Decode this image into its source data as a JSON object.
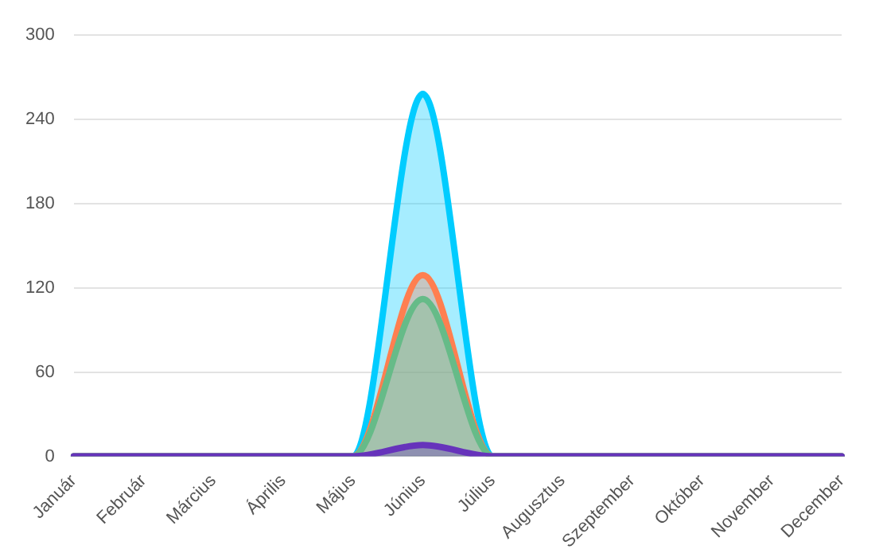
{
  "chart_data": {
    "type": "area",
    "categories": [
      "Január",
      "Február",
      "Március",
      "Április",
      "Május",
      "Június",
      "Július",
      "Augusztus",
      "Szeptember",
      "Október",
      "November",
      "December"
    ],
    "series": [
      {
        "color": "#00ccff",
        "values": [
          0,
          0,
          0,
          0,
          0,
          258,
          0,
          0,
          0,
          0,
          0,
          0
        ]
      },
      {
        "color": "#ff7f50",
        "values": [
          0,
          0,
          0,
          0,
          0,
          129,
          0,
          0,
          0,
          0,
          0,
          0
        ]
      },
      {
        "color": "#66bb88",
        "values": [
          0,
          0,
          0,
          0,
          0,
          112,
          0,
          0,
          0,
          0,
          0,
          0
        ]
      },
      {
        "color": "#6633bb",
        "values": [
          0,
          0,
          0,
          0,
          0,
          8,
          0,
          0,
          0,
          0,
          0,
          0
        ]
      }
    ],
    "ylim": [
      0,
      300
    ],
    "yticks": [
      0,
      60,
      120,
      180,
      240,
      300
    ],
    "grid": "y",
    "legend": false,
    "marker": "none",
    "line_style": "solid"
  }
}
